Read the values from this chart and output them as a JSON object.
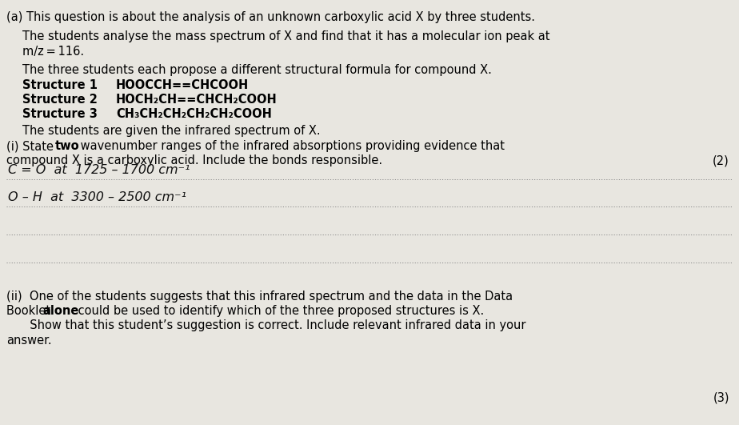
{
  "bg_color": "#e8e6e0",
  "text_color": "#000000",
  "handwritten_color": "#111111",
  "dotted_color": "#888888",
  "fig_width": 9.24,
  "fig_height": 5.31,
  "dpi": 100,
  "font_size_main": 10.5,
  "font_size_hand": 11.5,
  "title_a": "(a) This question is about the analysis of an unknown carboxylic acid X by three students.",
  "para1_l1": "The students analyse the mass spectrum of X and find that it has a molecular ion peak at",
  "para1_l2": "m/z = 116.",
  "para2": "The three students each propose a different structural formula for compound X.",
  "struct1_label": "Structure 1",
  "struct1_formula": "HOOCCH==CHCOOH",
  "struct2_label": "Structure 2",
  "struct2_formula": "HOCH₂CH==CHCH₂COOH",
  "struct3_label": "Structure 3",
  "struct3_formula": "CH₃CH₂CH₂CH₂CH₂COOH",
  "para3": "The students are given the infrared spectrum of X.",
  "qi_pre": "(i) State ",
  "qi_bold": "two",
  "qi_post": " wavenumber ranges of the infrared absorptions providing evidence that",
  "qi_l2": "compound X is a carboxylic acid. Include the bonds responsible.",
  "marks_i": "(2)",
  "hw1": "C = O  at  1725 – 1700 cm⁻¹",
  "hw2": "O – H  at  3300 – 2500 cm⁻¹",
  "qii_l1": "(ii)  One of the students suggests that this infrared spectrum and the data in the Data",
  "qii_l2_pre": "Booklet ",
  "qii_l2_bold": "alone",
  "qii_l2_post": " could be used to identify which of the three proposed structures is X.",
  "qii_l3": "  Show that this student’s suggestion is correct. Include relevant infrared data in your",
  "qii_l4": "answer.",
  "marks_ii": "(3)"
}
